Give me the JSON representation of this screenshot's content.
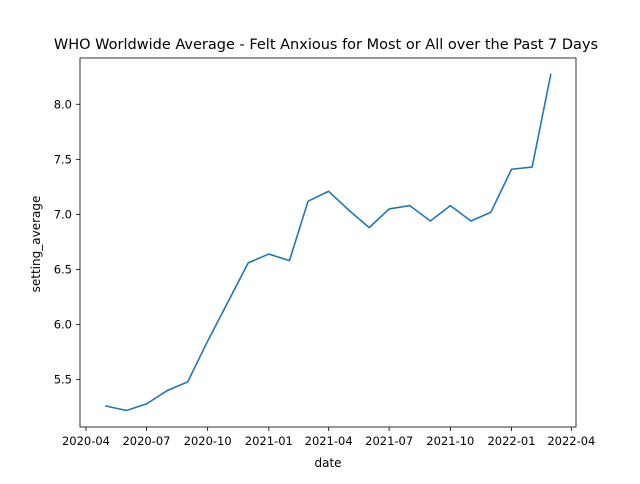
{
  "chart_data": {
    "type": "line",
    "title": "WHO Worldwide Average - Felt Anxious for Most or All over the Past 7 Days",
    "xlabel": "date",
    "ylabel": "setting_average",
    "x_ticks": [
      {
        "date": "2020-04-01",
        "label": "2020-04"
      },
      {
        "date": "2020-07-01",
        "label": "2020-07"
      },
      {
        "date": "2020-10-01",
        "label": "2020-10"
      },
      {
        "date": "2021-01-01",
        "label": "2021-01"
      },
      {
        "date": "2021-04-01",
        "label": "2021-04"
      },
      {
        "date": "2021-07-01",
        "label": "2021-07"
      },
      {
        "date": "2021-10-01",
        "label": "2021-10"
      },
      {
        "date": "2022-01-01",
        "label": "2022-01"
      },
      {
        "date": "2022-04-01",
        "label": "2022-04"
      }
    ],
    "y_ticks": [
      5.5,
      6.0,
      6.5,
      7.0,
      7.5,
      8.0
    ],
    "xlim": [
      "2020-03-23",
      "2022-04-08"
    ],
    "ylim": [
      5.07,
      8.42
    ],
    "grid": false,
    "series": [
      {
        "color": "#1f77b4",
        "points": [
          {
            "x": "2020-05-01",
            "y": 5.26
          },
          {
            "x": "2020-06-01",
            "y": 5.22
          },
          {
            "x": "2020-07-01",
            "y": 5.28
          },
          {
            "x": "2020-08-01",
            "y": 5.4
          },
          {
            "x": "2020-09-01",
            "y": 5.48
          },
          {
            "x": "2020-10-01",
            "y": 5.85
          },
          {
            "x": "2020-11-01",
            "y": 6.21
          },
          {
            "x": "2020-12-01",
            "y": 6.56
          },
          {
            "x": "2021-01-01",
            "y": 6.64
          },
          {
            "x": "2021-02-01",
            "y": 6.58
          },
          {
            "x": "2021-03-01",
            "y": 7.12
          },
          {
            "x": "2021-04-01",
            "y": 7.21
          },
          {
            "x": "2021-05-01",
            "y": 7.04
          },
          {
            "x": "2021-06-01",
            "y": 6.88
          },
          {
            "x": "2021-07-01",
            "y": 7.05
          },
          {
            "x": "2021-08-01",
            "y": 7.08
          },
          {
            "x": "2021-09-01",
            "y": 6.94
          },
          {
            "x": "2021-10-01",
            "y": 7.08
          },
          {
            "x": "2021-11-01",
            "y": 6.94
          },
          {
            "x": "2021-12-01",
            "y": 7.02
          },
          {
            "x": "2022-01-01",
            "y": 7.41
          },
          {
            "x": "2022-02-01",
            "y": 7.43
          },
          {
            "x": "2022-03-01",
            "y": 8.27
          }
        ]
      }
    ]
  }
}
